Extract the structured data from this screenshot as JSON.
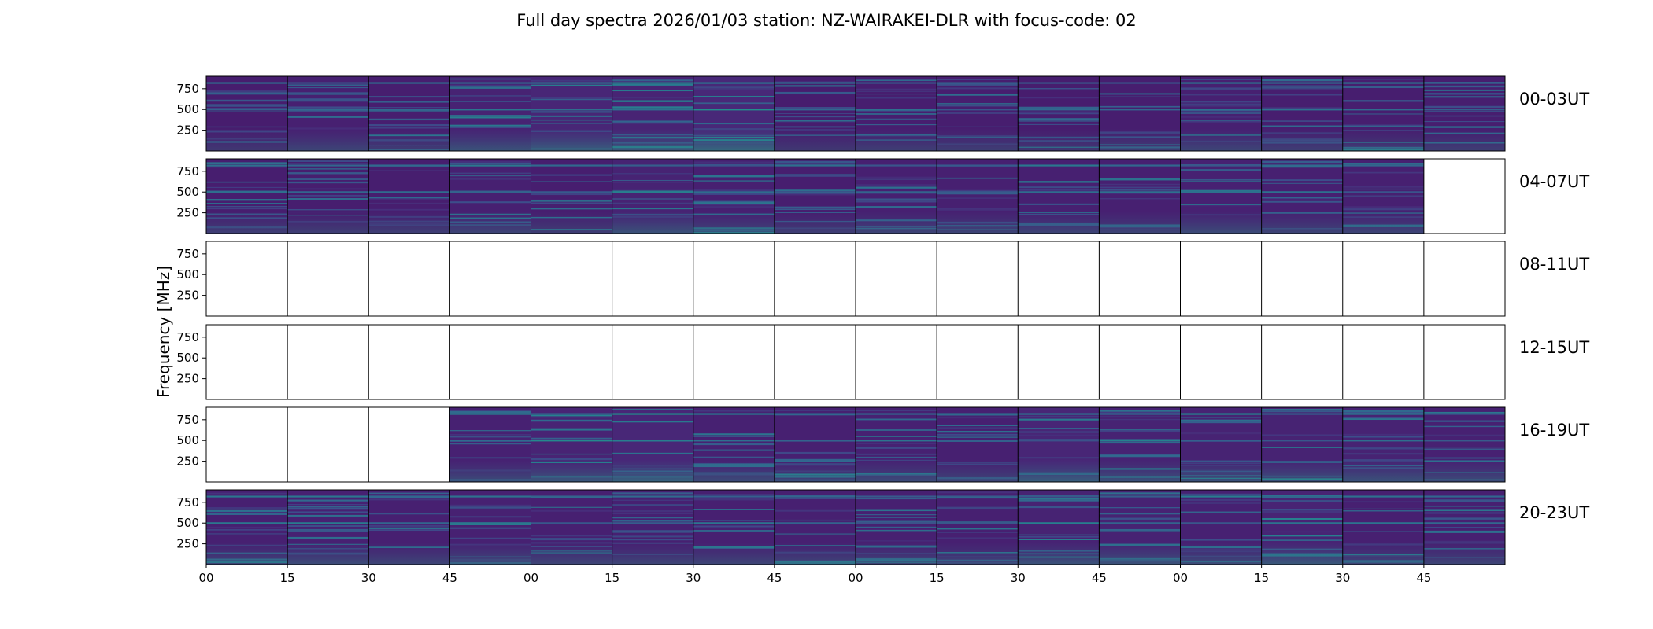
{
  "chart_data": {
    "type": "heatmap",
    "title": "Full day spectra 2026/01/03 station: NZ-WAIRAKEI-DLR with focus-code: 02",
    "ylabel": "Frequency [MHz]",
    "xlabel": "",
    "ytick_labels": [
      "250",
      "500",
      "750"
    ],
    "ytick_values": [
      250,
      500,
      750
    ],
    "ylim": [
      0,
      900
    ],
    "xtick_labels": [
      "00",
      "15",
      "30",
      "45",
      "00",
      "15",
      "30",
      "45",
      "00",
      "15",
      "30",
      "45",
      "00",
      "15",
      "30",
      "45"
    ],
    "segments_per_row": 16,
    "colormap": "viridis",
    "rows": [
      {
        "label": "00-03UT",
        "available": [
          true,
          true,
          true,
          true,
          true,
          true,
          true,
          true,
          true,
          true,
          true,
          true,
          true,
          true,
          true,
          true
        ],
        "intensity": [
          0.25,
          0.35,
          0.3,
          0.45,
          0.55,
          0.5,
          0.65,
          0.25,
          0.3,
          0.3,
          0.25,
          0.3,
          0.35,
          0.3,
          0.3,
          0.3
        ]
      },
      {
        "label": "04-07UT",
        "available": [
          true,
          true,
          true,
          true,
          true,
          true,
          true,
          true,
          true,
          true,
          true,
          true,
          true,
          true,
          true,
          false
        ],
        "intensity": [
          0.3,
          0.3,
          0.3,
          0.35,
          0.3,
          0.45,
          0.35,
          0.3,
          0.35,
          0.35,
          0.35,
          0.35,
          0.4,
          0.35,
          0.35,
          0
        ]
      },
      {
        "label": "08-11UT",
        "available": [
          false,
          false,
          false,
          false,
          false,
          false,
          false,
          false,
          false,
          false,
          false,
          false,
          false,
          false,
          false,
          false
        ],
        "intensity": [
          0,
          0,
          0,
          0,
          0,
          0,
          0,
          0,
          0,
          0,
          0,
          0,
          0,
          0,
          0,
          0
        ]
      },
      {
        "label": "12-15UT",
        "available": [
          false,
          false,
          false,
          false,
          false,
          false,
          false,
          false,
          false,
          false,
          false,
          false,
          false,
          false,
          false,
          false
        ],
        "intensity": [
          0,
          0,
          0,
          0,
          0,
          0,
          0,
          0,
          0,
          0,
          0,
          0,
          0,
          0,
          0,
          0
        ]
      },
      {
        "label": "16-19UT",
        "available": [
          false,
          false,
          false,
          true,
          true,
          true,
          true,
          true,
          true,
          true,
          true,
          true,
          true,
          true,
          true,
          true
        ],
        "intensity": [
          0,
          0,
          0,
          0.4,
          0.5,
          0.6,
          0.4,
          0.35,
          0.4,
          0.35,
          0.55,
          0.45,
          0.45,
          0.45,
          0.45,
          0.4
        ]
      },
      {
        "label": "20-23UT",
        "available": [
          true,
          true,
          true,
          true,
          true,
          true,
          true,
          true,
          true,
          true,
          true,
          true,
          true,
          true,
          true,
          true
        ],
        "intensity": [
          0.35,
          0.4,
          0.35,
          0.4,
          0.35,
          0.35,
          0.35,
          0.35,
          0.35,
          0.35,
          0.45,
          0.45,
          0.4,
          0.5,
          0.35,
          0.35
        ]
      }
    ]
  }
}
